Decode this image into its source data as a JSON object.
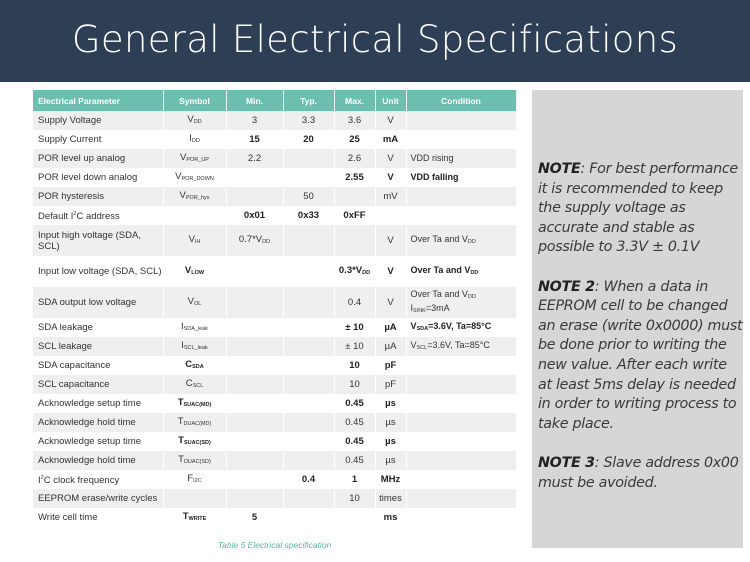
{
  "title": "General Electrical Specifications",
  "colors": {
    "banner": "#2d3e55",
    "table_header": "#6cbfae",
    "notes_panel": "#d6d6d6",
    "caption": "#5bb3a2"
  },
  "table": {
    "headers": [
      "Electrical Parameter",
      "Symbol",
      "Min.",
      "Typ.",
      "Max.",
      "Unit",
      "Condition"
    ],
    "rows": [
      {
        "cells": [
          "Supply Voltage",
          [
            {
              "t": "V"
            },
            {
              "sub": "DD"
            }
          ],
          "3",
          "3.3",
          "3.6",
          "V",
          ""
        ],
        "strong": []
      },
      {
        "cells": [
          "Supply Current",
          [
            {
              "t": "I"
            },
            {
              "sub": "DD"
            }
          ],
          "15",
          "20",
          "25",
          "mA",
          ""
        ],
        "strong": [
          2,
          3,
          4,
          5
        ]
      },
      {
        "cells": [
          "POR level up analog",
          [
            {
              "t": "V"
            },
            {
              "sub": "POR_UP"
            }
          ],
          "2.2",
          "",
          "2.6",
          "V",
          "VDD rising"
        ],
        "strong": []
      },
      {
        "cells": [
          "POR level down analog",
          [
            {
              "t": "V"
            },
            {
              "sub": "POR_DOWN"
            }
          ],
          "",
          "",
          "2.55",
          "V",
          "VDD falling"
        ],
        "strong": [
          4,
          5,
          6
        ]
      },
      {
        "cells": [
          "POR hysteresis",
          [
            {
              "t": "V"
            },
            {
              "sub": "POR_hys"
            }
          ],
          "",
          "50",
          "",
          "mV",
          ""
        ],
        "strong": []
      },
      {
        "cells": [
          [
            {
              "t": "Default I"
            },
            {
              "sup": "2"
            },
            {
              "t": "C address"
            }
          ],
          "",
          "0x01",
          "0x33",
          "0xFF",
          "",
          ""
        ],
        "strong": [
          2,
          3,
          4
        ]
      },
      {
        "cells": [
          "Input high voltage (SDA, SCL)",
          [
            {
              "t": "V"
            },
            {
              "sub": "IH"
            }
          ],
          [
            {
              "t": "0.7*V"
            },
            {
              "sub": "DD"
            }
          ],
          "",
          "",
          "V",
          [
            {
              "t": "Over Ta and V"
            },
            {
              "sub": "DD"
            }
          ]
        ],
        "strong": [],
        "double": true
      },
      {
        "cells": [
          "Input low voltage (SDA, SCL)",
          [
            {
              "t": "V"
            },
            {
              "sub": "LOW"
            }
          ],
          "",
          "",
          [
            {
              "t": "0.3*V"
            },
            {
              "sub": "DD"
            }
          ],
          "V",
          [
            {
              "t": "Over Ta and V"
            },
            {
              "sub": "DD"
            }
          ]
        ],
        "strong": [
          1,
          4,
          5,
          6
        ],
        "double": true
      },
      {
        "cells": [
          "SDA output low voltage",
          [
            {
              "t": "V"
            },
            {
              "sub": "OL"
            }
          ],
          "",
          "",
          "0.4",
          "V",
          [
            {
              "t": "Over Ta and V"
            },
            {
              "sub": "DD"
            },
            {
              "br": ""
            },
            {
              "t": "I"
            },
            {
              "sub": "SINK"
            },
            {
              "t": "=3mA"
            }
          ]
        ],
        "strong": [],
        "double": true
      },
      {
        "cells": [
          "SDA leakage",
          [
            {
              "t": "I"
            },
            {
              "sub": "SDA_leak"
            }
          ],
          "",
          "",
          "± 10",
          "µA",
          [
            {
              "t": "V"
            },
            {
              "sub": "SDA"
            },
            {
              "t": "=3.6V, Ta=85°C"
            }
          ]
        ],
        "strong": [
          4,
          5,
          6
        ]
      },
      {
        "cells": [
          "SCL leakage",
          [
            {
              "t": "I"
            },
            {
              "sub": "SCL_leak"
            }
          ],
          "",
          "",
          "± 10",
          "µA",
          [
            {
              "t": "V"
            },
            {
              "sub": "SCL"
            },
            {
              "t": "=3.6V, Ta=85°C"
            }
          ]
        ],
        "strong": []
      },
      {
        "cells": [
          "SDA capacitance",
          [
            {
              "t": "C"
            },
            {
              "sub": "SDA"
            }
          ],
          "",
          "",
          "10",
          "pF",
          ""
        ],
        "strong": [
          1,
          4,
          5
        ]
      },
      {
        "cells": [
          "SCL capacitance",
          [
            {
              "t": "C"
            },
            {
              "sub": "SCL"
            }
          ],
          "",
          "",
          "10",
          "pF",
          ""
        ],
        "strong": []
      },
      {
        "cells": [
          "Acknowledge setup time",
          [
            {
              "t": "T"
            },
            {
              "sub": "SUAC(MD)"
            }
          ],
          "",
          "",
          "0.45",
          "µs",
          ""
        ],
        "strong": [
          1,
          4,
          5
        ]
      },
      {
        "cells": [
          "Acknowledge hold time",
          [
            {
              "t": "T"
            },
            {
              "sub": "DUAC(MD)"
            }
          ],
          "",
          "",
          "0.45",
          "µs",
          ""
        ],
        "strong": []
      },
      {
        "cells": [
          "Acknowledge setup time",
          [
            {
              "t": "T"
            },
            {
              "sub": "SUAC(SD)"
            }
          ],
          "",
          "",
          "0.45",
          "µs",
          ""
        ],
        "strong": [
          1,
          4,
          5
        ]
      },
      {
        "cells": [
          "Acknowledge hold time",
          [
            {
              "t": "T"
            },
            {
              "sub": "DUAC(SD)"
            }
          ],
          "",
          "",
          "0.45",
          "µs",
          ""
        ],
        "strong": []
      },
      {
        "cells": [
          [
            {
              "t": "I"
            },
            {
              "sup": "2"
            },
            {
              "t": "C clock frequency"
            }
          ],
          [
            {
              "t": "F"
            },
            {
              "sub": "I2C"
            }
          ],
          "",
          "0.4",
          "1",
          "MHz",
          ""
        ],
        "strong": [
          3,
          4,
          5
        ]
      },
      {
        "cells": [
          "EEPROM erase/write cycles",
          "",
          "",
          "",
          "10",
          "times",
          ""
        ],
        "strong": []
      },
      {
        "cells": [
          "Write cell time",
          [
            {
              "t": "T"
            },
            {
              "sub": "WRITE"
            }
          ],
          "5",
          "",
          "",
          "ms",
          ""
        ],
        "strong": [
          1,
          2,
          5
        ]
      }
    ],
    "caption": "Table 5 Electrical specification"
  },
  "notes": [
    {
      "label": "NOTE",
      "text": ": For best performance it is recommended to keep the supply voltage as accurate and stable as possible to 3.3V ± 0.1V"
    },
    {
      "label": "NOTE 2",
      "text": ": When a data in EEPROM cell to be changed an erase (write 0x0000) must be done prior to writing the new value. After each write at least 5ms delay is needed in order to writing process to take place."
    },
    {
      "label": "NOTE 3",
      "text": ": Slave address 0x00 must be avoided."
    }
  ]
}
